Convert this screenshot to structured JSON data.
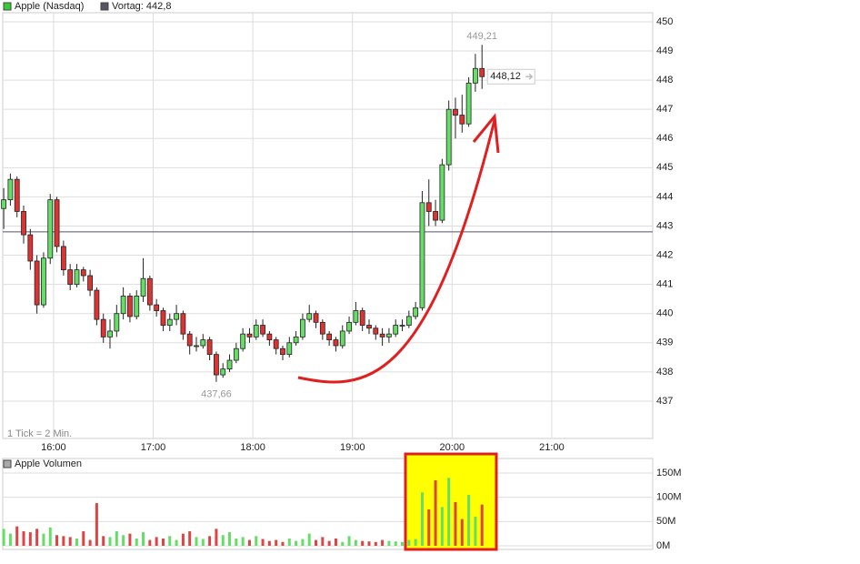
{
  "chart_data": [
    {
      "type": "candlestick",
      "series": [
        {
          "name": "Apple (Nasdaq)",
          "color": "#33cc33",
          "up_color": "#66dd66",
          "down_color": "#dd3333",
          "x": [
            930,
            934,
            938,
            942,
            946,
            950,
            954,
            958,
            962,
            966,
            970,
            974,
            978,
            982,
            986,
            990,
            994,
            998,
            1002,
            1006,
            1010,
            1014,
            1018,
            1022,
            1026,
            1030,
            1034,
            1038,
            1042,
            1046,
            1050,
            1054,
            1058,
            1062,
            1066,
            1070,
            1074,
            1078,
            1082,
            1086,
            1090,
            1094,
            1098,
            1102,
            1106,
            1110,
            1114,
            1118,
            1122,
            1126,
            1130,
            1134,
            1138,
            1142,
            1146,
            1150,
            1154,
            1158,
            1162,
            1166,
            1170,
            1174,
            1178,
            1182,
            1186,
            1190,
            1194,
            1198,
            1202,
            1206,
            1210,
            1214,
            1218
          ],
          "ohlc": [
            [
              443.6,
              444.3,
              442.9,
              443.9
            ],
            [
              443.9,
              444.8,
              443.7,
              444.6
            ],
            [
              444.6,
              444.7,
              443.3,
              443.5
            ],
            [
              443.5,
              443.7,
              442.4,
              442.7
            ],
            [
              442.7,
              442.9,
              441.5,
              441.8
            ],
            [
              441.8,
              442.0,
              440.0,
              440.3
            ],
            [
              440.3,
              442.1,
              440.2,
              441.9
            ],
            [
              441.9,
              444.1,
              441.7,
              443.9
            ],
            [
              443.9,
              444.0,
              442.1,
              442.3
            ],
            [
              442.3,
              442.5,
              441.3,
              441.5
            ],
            [
              441.5,
              441.7,
              440.8,
              441.0
            ],
            [
              441.0,
              441.7,
              440.9,
              441.5
            ],
            [
              441.5,
              441.6,
              441.1,
              441.3
            ],
            [
              441.3,
              441.5,
              440.6,
              440.8
            ],
            [
              440.8,
              440.9,
              439.6,
              439.8
            ],
            [
              439.8,
              440.0,
              439.0,
              439.2
            ],
            [
              439.2,
              439.8,
              438.8,
              439.4
            ],
            [
              439.4,
              440.3,
              439.2,
              440.0
            ],
            [
              440.0,
              440.9,
              439.8,
              440.6
            ],
            [
              440.6,
              440.7,
              439.7,
              439.9
            ],
            [
              439.9,
              440.8,
              439.8,
              440.6
            ],
            [
              440.6,
              441.9,
              440.4,
              441.2
            ],
            [
              441.2,
              441.3,
              440.1,
              440.3
            ],
            [
              440.3,
              440.5,
              439.9,
              440.1
            ],
            [
              440.1,
              440.2,
              439.4,
              439.6
            ],
            [
              439.6,
              440.0,
              439.4,
              439.8
            ],
            [
              439.8,
              440.3,
              439.6,
              440.0
            ],
            [
              440.0,
              440.1,
              439.1,
              439.3
            ],
            [
              439.3,
              439.4,
              438.6,
              438.9
            ],
            [
              438.9,
              439.2,
              438.7,
              438.9
            ],
            [
              438.9,
              439.3,
              438.8,
              439.1
            ],
            [
              439.1,
              439.2,
              438.4,
              438.6
            ],
            [
              438.6,
              438.7,
              437.66,
              437.9
            ],
            [
              437.9,
              438.3,
              437.8,
              438.1
            ],
            [
              438.1,
              438.6,
              438.0,
              438.4
            ],
            [
              438.4,
              439.0,
              438.3,
              438.8
            ],
            [
              438.8,
              439.5,
              438.7,
              439.3
            ],
            [
              439.3,
              439.5,
              439.0,
              439.2
            ],
            [
              439.2,
              439.8,
              439.1,
              439.6
            ],
            [
              439.6,
              439.8,
              439.2,
              439.3
            ],
            [
              439.3,
              439.4,
              438.9,
              439.1
            ],
            [
              439.1,
              439.2,
              438.6,
              438.8
            ],
            [
              438.8,
              438.9,
              438.4,
              438.6
            ],
            [
              438.6,
              439.2,
              438.5,
              439.0
            ],
            [
              439.0,
              439.4,
              438.9,
              439.2
            ],
            [
              439.2,
              440.0,
              439.1,
              439.8
            ],
            [
              439.8,
              440.3,
              439.7,
              440.0
            ],
            [
              440.0,
              440.1,
              439.5,
              439.7
            ],
            [
              439.7,
              439.8,
              439.1,
              439.3
            ],
            [
              439.3,
              439.4,
              438.9,
              439.1
            ],
            [
              439.1,
              439.2,
              438.7,
              438.9
            ],
            [
              438.9,
              439.6,
              438.8,
              439.4
            ],
            [
              439.4,
              439.9,
              439.3,
              439.7
            ],
            [
              439.7,
              440.4,
              439.6,
              440.1
            ],
            [
              440.1,
              440.2,
              439.4,
              439.6
            ],
            [
              439.6,
              439.8,
              439.3,
              439.5
            ],
            [
              439.5,
              439.6,
              439.1,
              439.3
            ],
            [
              439.3,
              439.5,
              438.9,
              439.2
            ],
            [
              439.2,
              439.5,
              439.0,
              439.3
            ],
            [
              439.3,
              439.8,
              439.2,
              439.6
            ],
            [
              439.6,
              439.8,
              439.4,
              439.6
            ],
            [
              439.6,
              440.1,
              439.5,
              439.9
            ],
            [
              439.9,
              440.4,
              439.8,
              440.2
            ],
            [
              440.2,
              444.2,
              440.1,
              443.8
            ],
            [
              443.8,
              444.6,
              443.0,
              443.5
            ],
            [
              443.5,
              443.9,
              443.0,
              443.2
            ],
            [
              443.2,
              445.3,
              443.1,
              445.1
            ],
            [
              445.1,
              447.3,
              444.9,
              447.0
            ],
            [
              447.0,
              447.4,
              446.0,
              446.8
            ],
            [
              446.8,
              447.5,
              446.2,
              446.5
            ],
            [
              446.5,
              448.1,
              446.4,
              447.9
            ],
            [
              447.9,
              448.9,
              447.6,
              448.4
            ],
            [
              448.4,
              449.21,
              447.7,
              448.12
            ]
          ]
        }
      ],
      "reference_line": {
        "name": "Vortag: 442,8",
        "value": 442.8,
        "color": "#555566"
      },
      "high_label": "449,21",
      "low_label": "437,66",
      "last_label": "448,12",
      "note": "1 Tick = 2 Min.",
      "xlim": [
        929.4,
        1320.8
      ],
      "xticks": [
        {
          "value": 960,
          "label": "16:00"
        },
        {
          "value": 1020,
          "label": "17:00"
        },
        {
          "value": 1080,
          "label": "18:00"
        },
        {
          "value": 1140,
          "label": "19:00"
        },
        {
          "value": 1200,
          "label": "20:00"
        },
        {
          "value": 1260,
          "label": "21:00"
        }
      ],
      "ylim": [
        435.72,
        450.31
      ],
      "yticks": [
        437,
        438,
        439,
        440,
        441,
        442,
        443,
        444,
        445,
        446,
        447,
        448,
        449,
        450
      ],
      "grid": true
    },
    {
      "type": "bar",
      "series": [
        {
          "name": "Apple Volumen",
          "color": "#aaaaaa",
          "up_color": "#66dd66",
          "down_color": "#dd4444",
          "x": [
            930,
            934,
            938,
            942,
            946,
            950,
            954,
            958,
            962,
            966,
            970,
            974,
            978,
            982,
            986,
            990,
            994,
            998,
            1002,
            1006,
            1010,
            1014,
            1018,
            1022,
            1026,
            1030,
            1034,
            1038,
            1042,
            1046,
            1050,
            1054,
            1058,
            1062,
            1066,
            1070,
            1074,
            1078,
            1082,
            1086,
            1090,
            1094,
            1098,
            1102,
            1106,
            1110,
            1114,
            1118,
            1122,
            1126,
            1130,
            1134,
            1138,
            1142,
            1146,
            1150,
            1154,
            1158,
            1162,
            1166,
            1170,
            1174,
            1178,
            1182,
            1186,
            1190,
            1194,
            1198,
            1202,
            1206,
            1210,
            1214,
            1218
          ],
          "values": [
            35,
            25,
            40,
            30,
            28,
            35,
            25,
            38,
            22,
            20,
            18,
            15,
            30,
            12,
            88,
            20,
            18,
            30,
            22,
            25,
            15,
            28,
            12,
            18,
            15,
            20,
            12,
            25,
            30,
            18,
            14,
            20,
            35,
            22,
            28,
            15,
            18,
            12,
            20,
            14,
            10,
            12,
            8,
            15,
            10,
            14,
            25,
            12,
            18,
            10,
            15,
            8,
            20,
            12,
            10,
            9,
            8,
            12,
            10,
            9,
            8,
            12,
            14,
            110,
            75,
            135,
            80,
            140,
            90,
            55,
            105,
            60,
            85
          ]
        }
      ],
      "xlim": [
        929.4,
        1320.8
      ],
      "ylim": [
        -7.5,
        180
      ],
      "yticks": [
        {
          "value": 0,
          "label": "0M"
        },
        {
          "value": 50,
          "label": "50M"
        },
        {
          "value": 100,
          "label": "100M"
        },
        {
          "value": 150,
          "label": "150M"
        }
      ],
      "grid": true
    }
  ]
}
